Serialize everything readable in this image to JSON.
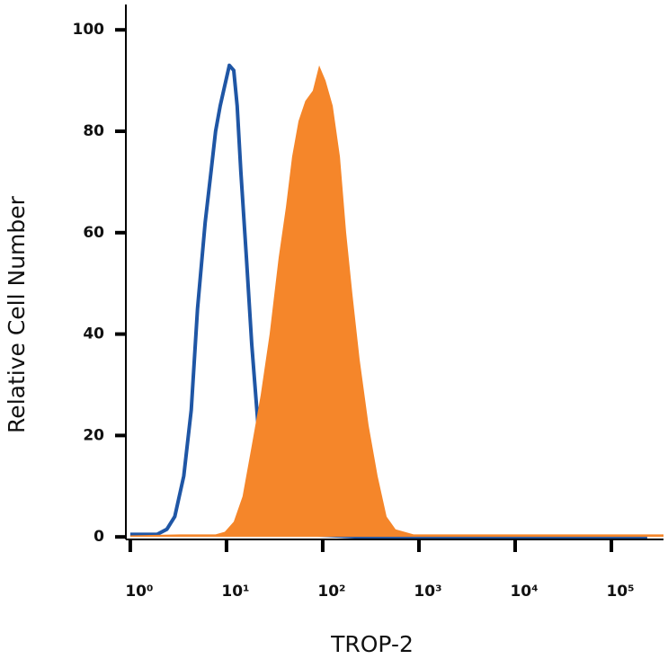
{
  "chart_data": {
    "type": "line",
    "xlabel": "TROP-2",
    "ylabel": "Relative Cell Number",
    "xscale": "log",
    "xlim": [
      0.9,
      348000
    ],
    "ylim": [
      -0.5,
      105
    ],
    "xticks": [
      {
        "value": 1,
        "label": "10⁰"
      },
      {
        "value": 10,
        "label": "10¹"
      },
      {
        "value": 100,
        "label": "10²"
      },
      {
        "value": 1000,
        "label": "10³"
      },
      {
        "value": 10000,
        "label": "10⁴"
      },
      {
        "value": 100000,
        "label": "10⁵"
      }
    ],
    "yticks": [
      0,
      20,
      40,
      60,
      80,
      100
    ],
    "series": [
      {
        "color": "#1f56a5",
        "fill": false,
        "x": [
          1,
          1.9,
          2.4,
          2.9,
          3.6,
          4.3,
          5.0,
          6.0,
          6.9,
          7.7,
          8.6,
          9.6,
          10.7,
          11.9,
          12.9,
          14.1,
          16.1,
          18.3,
          21.7,
          25.8,
          34.8,
          66,
          242,
          236000
        ],
        "values": [
          0.5,
          0.5,
          1.5,
          4,
          12,
          25,
          45,
          62,
          72,
          80,
          85,
          89,
          93,
          92,
          85,
          72,
          55,
          38,
          20,
          8,
          2,
          0.5,
          0,
          0
        ]
      },
      {
        "color": "#f5862a",
        "fill": true,
        "x": [
          1,
          3.3,
          7.7,
          9.6,
          11.9,
          14.7,
          18.3,
          22.7,
          28.1,
          34.8,
          41.4,
          48.1,
          56,
          66,
          78.9,
          91.8,
          107,
          127,
          151,
          175,
          203,
          242,
          300,
          372,
          461,
          572,
          879,
          348000
        ],
        "values": [
          0.3,
          0.5,
          0.5,
          1,
          3,
          8,
          18,
          28,
          40,
          55,
          65,
          75,
          82,
          86,
          88,
          93,
          90,
          85,
          75,
          60,
          48,
          35,
          22,
          12,
          4,
          1.5,
          0.5,
          0.5
        ]
      }
    ]
  }
}
